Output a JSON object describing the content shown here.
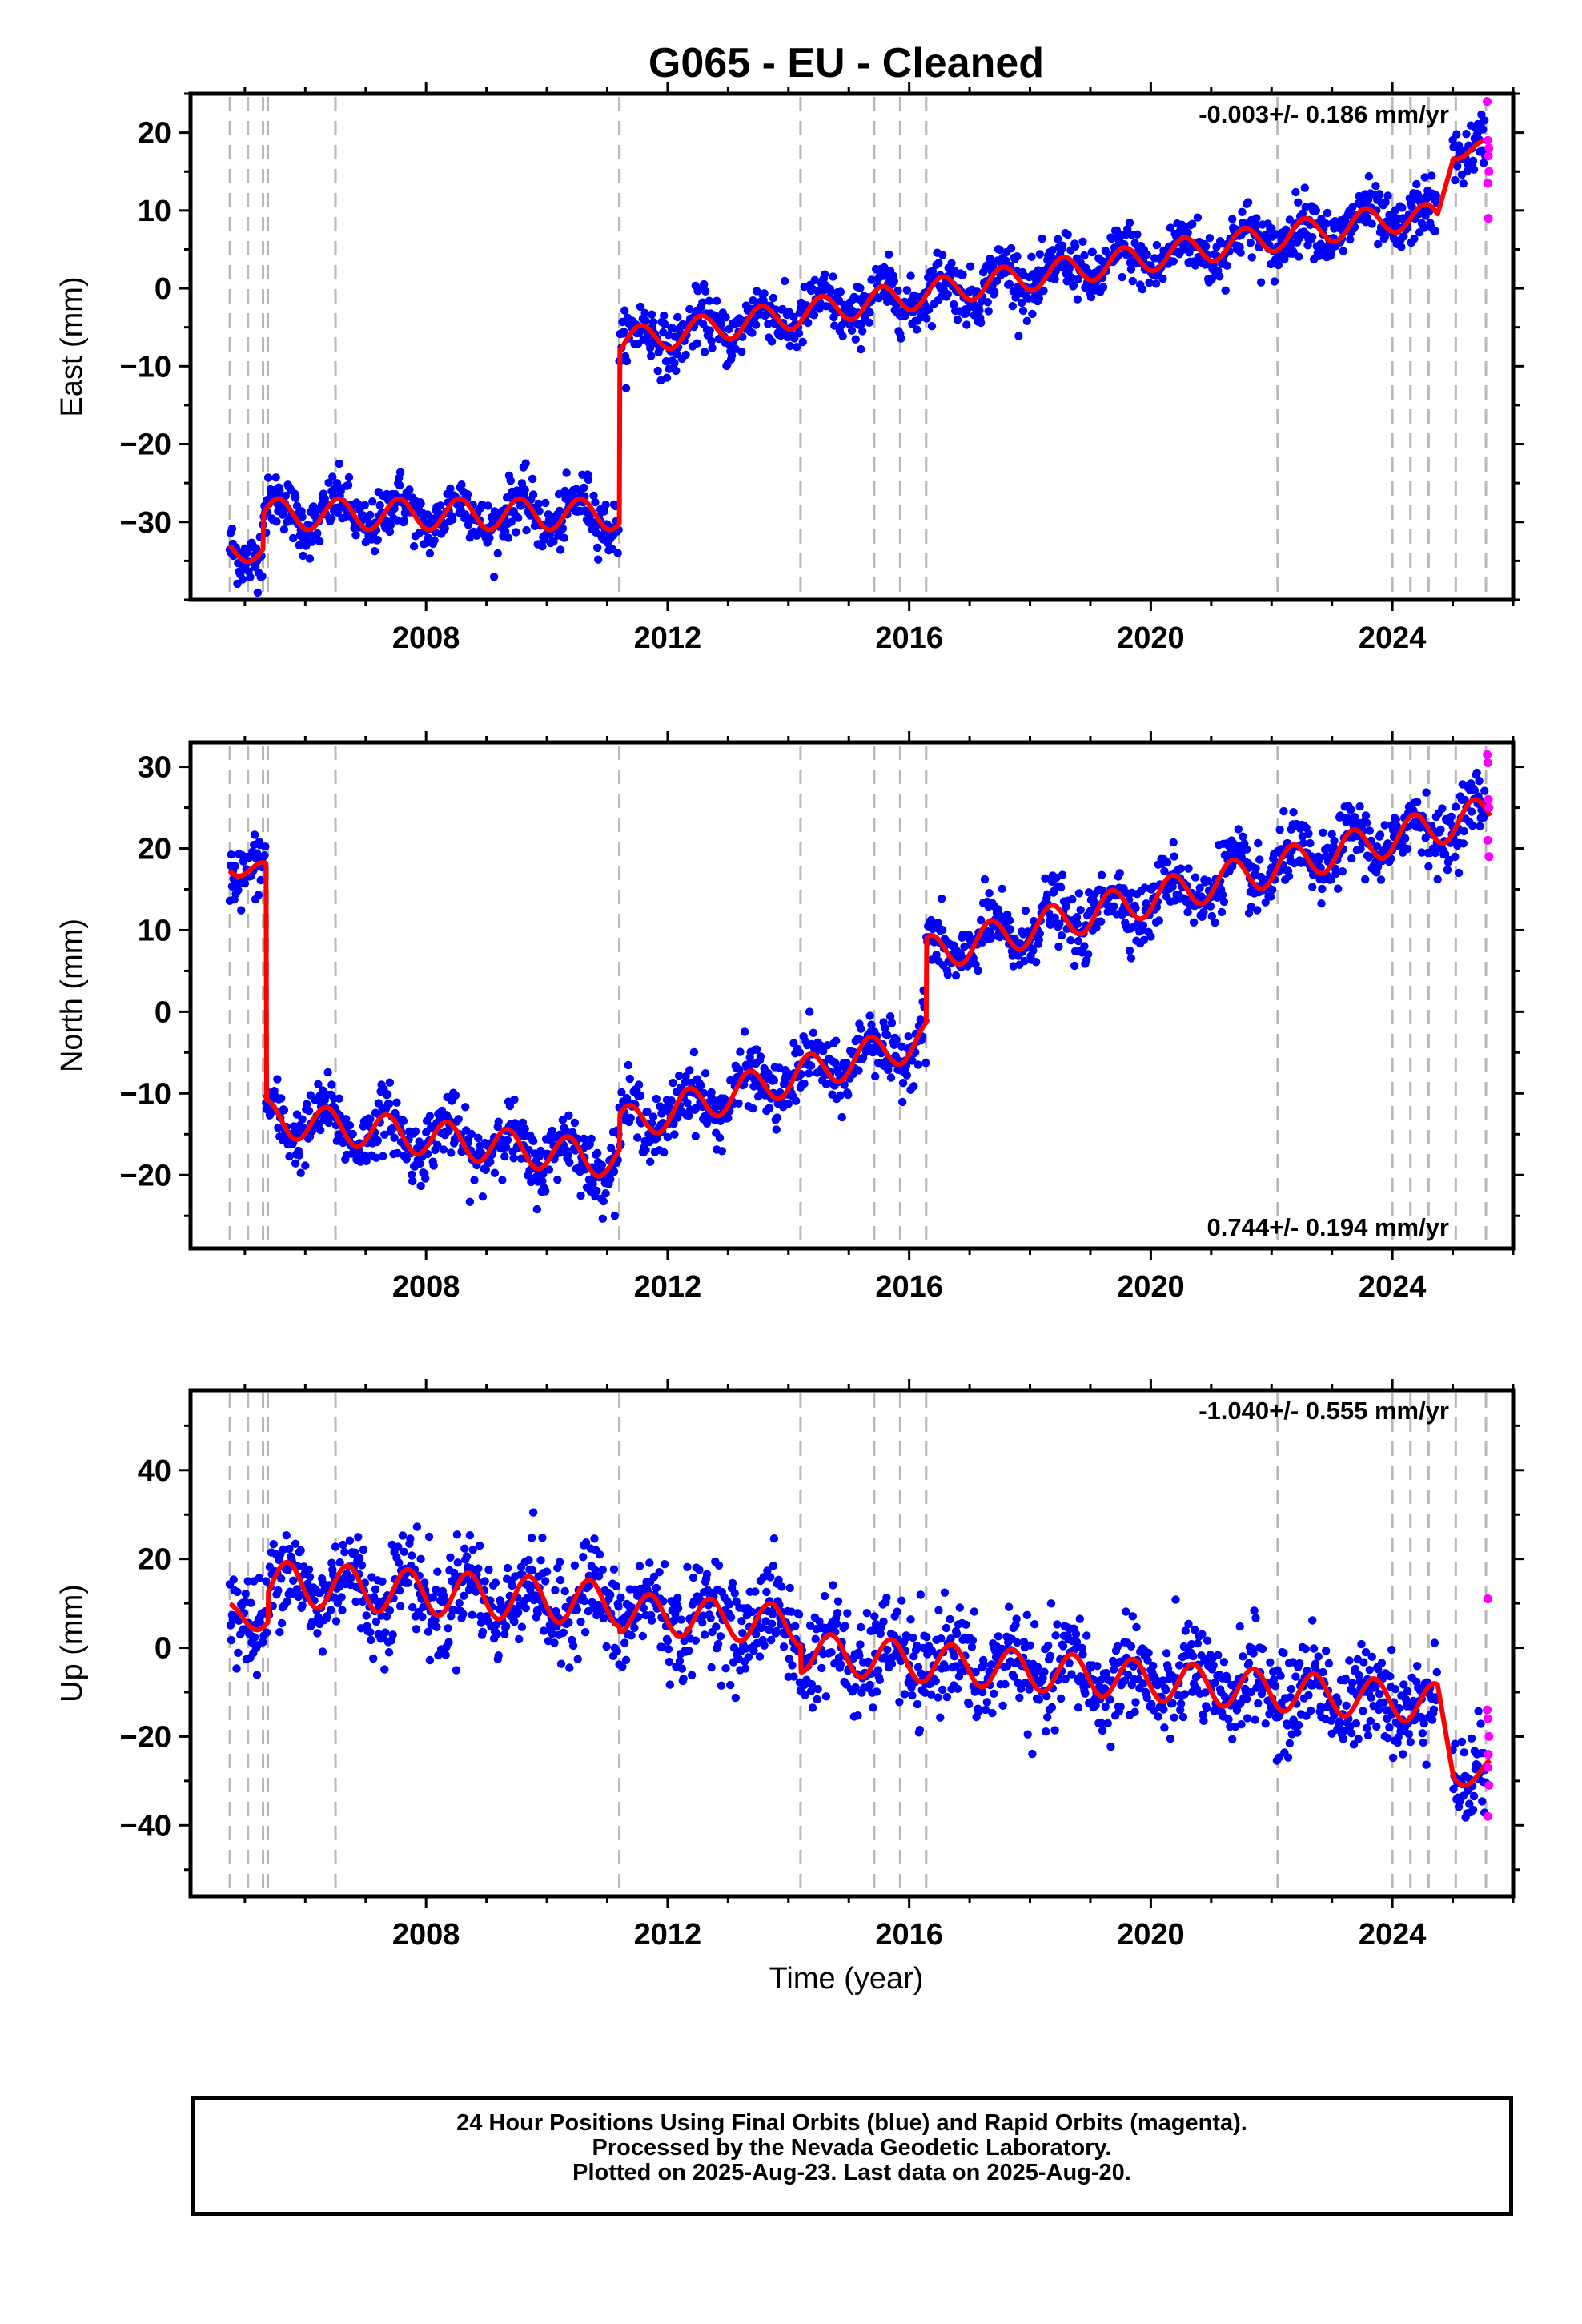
{
  "figure": {
    "title": "G065  - EU - Cleaned",
    "xlabel": "Time (year)",
    "footer": [
      "24 Hour Positions Using Final Orbits (blue) and Rapid Orbits (magenta).",
      "Processed by the Nevada Geodetic Laboratory.",
      "Plotted on 2025-Aug-23. Last data on 2025-Aug-20."
    ],
    "colors": {
      "final": "#0000ff",
      "rapid": "#ff00ff",
      "model": "#ff0000",
      "event": "#b8b8b8"
    }
  },
  "chart_data": [
    {
      "type": "scatter",
      "panel": "east",
      "ylabel": "East (mm)",
      "rate_label": "-0.003+/- 0.186 mm/yr",
      "xlim": [
        2004.1,
        2026.0
      ],
      "ylim": [
        -40,
        25
      ],
      "yticks": [
        -30,
        -20,
        -10,
        0,
        10,
        20
      ],
      "xticks": [
        2008,
        2012,
        2016,
        2020,
        2024
      ],
      "event_lines": [
        2004.75,
        2005.05,
        2005.3,
        2005.38,
        2006.5,
        2011.2,
        2014.2,
        2015.42,
        2015.85,
        2016.28,
        2022.1,
        2024.0,
        2024.3,
        2024.6,
        2025.05,
        2025.55
      ],
      "model": {
        "segments": [
          {
            "start": 2004.75,
            "end": 2005.3,
            "offset": -33.5,
            "rate": 0.0,
            "amp": 1.6,
            "phase": 0.3
          },
          {
            "start": 2005.3,
            "end": 2011.2,
            "offset": -29.0,
            "rate": 0.0,
            "amp": 2.0,
            "phase": 0.3
          },
          {
            "start": 2011.2,
            "end": 2024.0,
            "offset": -7.0,
            "rate": 1.25,
            "amp": 1.8,
            "phase": 0.3
          },
          {
            "start": 2024.0,
            "end": 2024.75,
            "offset": 9.0,
            "rate": 0.0,
            "amp": 1.8,
            "phase": 0.3
          },
          {
            "start": 2025.0,
            "end": 2025.62,
            "offset": 17.8,
            "rate": 0.0,
            "amp": 1.2,
            "phase": 0.3
          }
        ],
        "jump": {
          "x": 2024.75,
          "to": 2025.0
        }
      },
      "scatter_sigma": 1.8,
      "rapid_points": [
        [
          2025.57,
          24.0
        ],
        [
          2025.58,
          19.0
        ],
        [
          2025.59,
          17.0
        ],
        [
          2025.6,
          15.0
        ],
        [
          2025.58,
          13.5
        ],
        [
          2025.59,
          9.0
        ],
        [
          2025.6,
          18.0
        ]
      ]
    },
    {
      "type": "scatter",
      "panel": "north",
      "ylabel": "North (mm)",
      "rate_label": "0.744+/- 0.194 mm/yr",
      "xlim": [
        2004.1,
        2026.0
      ],
      "ylim": [
        -29,
        33
      ],
      "yticks": [
        -20,
        -10,
        0,
        10,
        20,
        30
      ],
      "xticks": [
        2008,
        2012,
        2016,
        2020,
        2024
      ],
      "event_lines": [
        2004.75,
        2005.05,
        2005.3,
        2005.38,
        2006.5,
        2011.2,
        2014.2,
        2015.42,
        2015.85,
        2016.28,
        2022.1,
        2024.0,
        2024.3,
        2024.6,
        2025.05,
        2025.55
      ],
      "model": {
        "segments": [
          {
            "start": 2004.75,
            "end": 2005.35,
            "offset": 18.5,
            "rate": -3.0,
            "amp": 1.5,
            "phase": 0.1
          },
          {
            "start": 2005.35,
            "end": 2011.2,
            "offset": -13.0,
            "rate": -0.9,
            "amp": 2.2,
            "phase": 0.1
          },
          {
            "start": 2011.2,
            "end": 2016.28,
            "offset": -14.0,
            "rate": 2.1,
            "amp": 2.2,
            "phase": 0.1
          },
          {
            "start": 2016.28,
            "end": 2025.62,
            "offset": 7.0,
            "rate": 1.85,
            "amp": 2.2,
            "phase": 0.1
          }
        ]
      },
      "scatter_sigma": 1.9,
      "rapid_points": [
        [
          2025.57,
          31.5
        ],
        [
          2025.58,
          30.5
        ],
        [
          2025.59,
          26.0
        ],
        [
          2025.6,
          25.0
        ],
        [
          2025.58,
          21.0
        ],
        [
          2025.6,
          19.0
        ]
      ]
    },
    {
      "type": "scatter",
      "panel": "up",
      "ylabel": "Up (mm)",
      "rate_label": "-1.040+/- 0.555 mm/yr",
      "xlim": [
        2004.1,
        2026.0
      ],
      "ylim": [
        -56,
        58
      ],
      "yticks": [
        -40,
        -20,
        0,
        20,
        40
      ],
      "xticks": [
        2008,
        2012,
        2016,
        2020,
        2024
      ],
      "event_lines": [
        2004.75,
        2005.05,
        2005.3,
        2005.38,
        2006.5,
        2011.2,
        2014.2,
        2015.42,
        2015.85,
        2016.28,
        2022.1,
        2024.0,
        2024.3,
        2024.6,
        2025.05,
        2025.55
      ],
      "model": {
        "segments": [
          {
            "start": 2004.75,
            "end": 2005.38,
            "offset": 7.0,
            "rate": 0.0,
            "amp": 3.0,
            "phase": 0.45
          },
          {
            "start": 2005.38,
            "end": 2011.2,
            "offset": 14.5,
            "rate": -0.8,
            "amp": 5.0,
            "phase": 0.45
          },
          {
            "start": 2011.2,
            "end": 2014.2,
            "offset": 8.0,
            "rate": -1.0,
            "amp": 4.5,
            "phase": 0.45
          },
          {
            "start": 2014.2,
            "end": 2024.75,
            "offset": -1.0,
            "rate": -1.1,
            "amp": 4.5,
            "phase": 0.45
          },
          {
            "start": 2025.0,
            "end": 2025.62,
            "offset": -28.0,
            "rate": 0.0,
            "amp": 3.0,
            "phase": 0.45
          }
        ],
        "jump": {
          "x": 2024.75,
          "to": 2025.0
        }
      },
      "scatter_sigma": 5.5,
      "rapid_points": [
        [
          2025.58,
          11.0
        ],
        [
          2025.57,
          -14.0
        ],
        [
          2025.58,
          -16.0
        ],
        [
          2025.6,
          -20.0
        ],
        [
          2025.59,
          -24.0
        ],
        [
          2025.58,
          -27.0
        ],
        [
          2025.6,
          -31.0
        ],
        [
          2025.58,
          -38.0
        ]
      ]
    }
  ]
}
